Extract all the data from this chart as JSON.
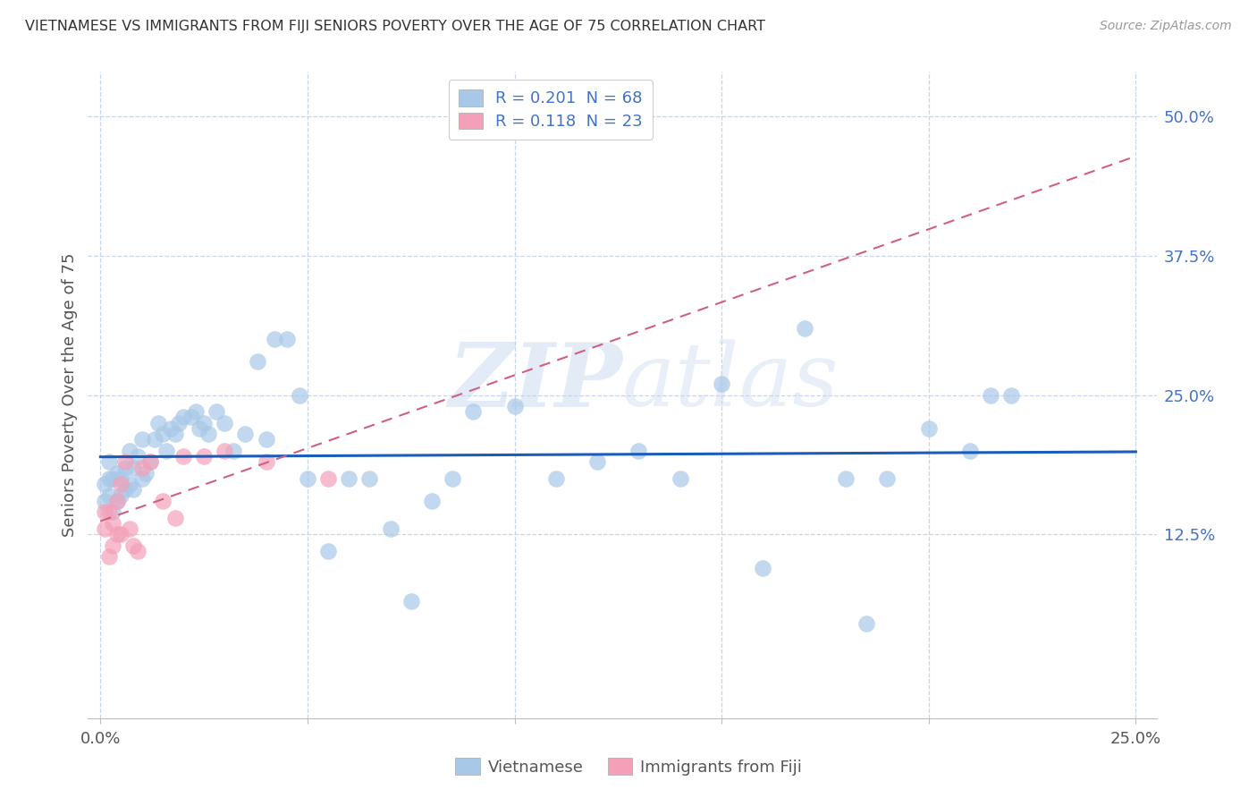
{
  "title": "VIETNAMESE VS IMMIGRANTS FROM FIJI SENIORS POVERTY OVER THE AGE OF 75 CORRELATION CHART",
  "source": "Source: ZipAtlas.com",
  "ylabel": "Seniors Poverty Over the Age of 75",
  "xlim": [
    -0.003,
    0.255
  ],
  "ylim": [
    -0.04,
    0.54
  ],
  "xticks": [
    0.0,
    0.05,
    0.1,
    0.15,
    0.2,
    0.25
  ],
  "xtick_labels": [
    "0.0%",
    "",
    "",
    "",
    "",
    "25.0%"
  ],
  "ytick_labels_right": [
    "12.5%",
    "25.0%",
    "37.5%",
    "50.0%"
  ],
  "ytick_positions_right": [
    0.125,
    0.25,
    0.375,
    0.5
  ],
  "legend_text1": "R = 0.201  N = 68",
  "legend_text2": "R = 0.118  N = 23",
  "blue_color": "#a8c8e8",
  "pink_color": "#f4a0b8",
  "line_blue": "#1a5cb8",
  "line_pink": "#d06080",
  "background_color": "#ffffff",
  "grid_color": "#c8d4e8",
  "title_color": "#333333",
  "source_color": "#999999",
  "tick_color_right": "#4472c4",
  "watermark_color": "#c8d8ee",
  "viet_x": [
    0.001,
    0.001,
    0.002,
    0.002,
    0.002,
    0.003,
    0.003,
    0.004,
    0.004,
    0.005,
    0.005,
    0.006,
    0.006,
    0.007,
    0.007,
    0.008,
    0.008,
    0.009,
    0.01,
    0.01,
    0.011,
    0.012,
    0.013,
    0.014,
    0.015,
    0.016,
    0.017,
    0.018,
    0.019,
    0.02,
    0.022,
    0.023,
    0.024,
    0.025,
    0.026,
    0.028,
    0.03,
    0.032,
    0.035,
    0.038,
    0.04,
    0.042,
    0.045,
    0.048,
    0.05,
    0.055,
    0.06,
    0.065,
    0.07,
    0.075,
    0.08,
    0.085,
    0.09,
    0.1,
    0.11,
    0.12,
    0.13,
    0.14,
    0.15,
    0.16,
    0.17,
    0.18,
    0.185,
    0.19,
    0.2,
    0.21,
    0.215,
    0.22
  ],
  "viet_y": [
    0.155,
    0.17,
    0.175,
    0.19,
    0.16,
    0.145,
    0.175,
    0.18,
    0.155,
    0.175,
    0.16,
    0.185,
    0.165,
    0.17,
    0.2,
    0.165,
    0.185,
    0.195,
    0.175,
    0.21,
    0.18,
    0.19,
    0.21,
    0.225,
    0.215,
    0.2,
    0.22,
    0.215,
    0.225,
    0.23,
    0.23,
    0.235,
    0.22,
    0.225,
    0.215,
    0.235,
    0.225,
    0.2,
    0.215,
    0.28,
    0.21,
    0.3,
    0.3,
    0.25,
    0.175,
    0.11,
    0.175,
    0.175,
    0.13,
    0.065,
    0.155,
    0.175,
    0.235,
    0.24,
    0.175,
    0.19,
    0.2,
    0.175,
    0.26,
    0.095,
    0.31,
    0.175,
    0.045,
    0.175,
    0.22,
    0.2,
    0.25,
    0.25
  ],
  "fiji_x": [
    0.001,
    0.001,
    0.002,
    0.002,
    0.003,
    0.003,
    0.004,
    0.004,
    0.005,
    0.005,
    0.006,
    0.007,
    0.008,
    0.009,
    0.01,
    0.012,
    0.015,
    0.018,
    0.02,
    0.025,
    0.03,
    0.04,
    0.055
  ],
  "fiji_y": [
    0.13,
    0.145,
    0.105,
    0.145,
    0.115,
    0.135,
    0.125,
    0.155,
    0.125,
    0.17,
    0.19,
    0.13,
    0.115,
    0.11,
    0.185,
    0.19,
    0.155,
    0.14,
    0.195,
    0.195,
    0.2,
    0.19,
    0.175
  ]
}
